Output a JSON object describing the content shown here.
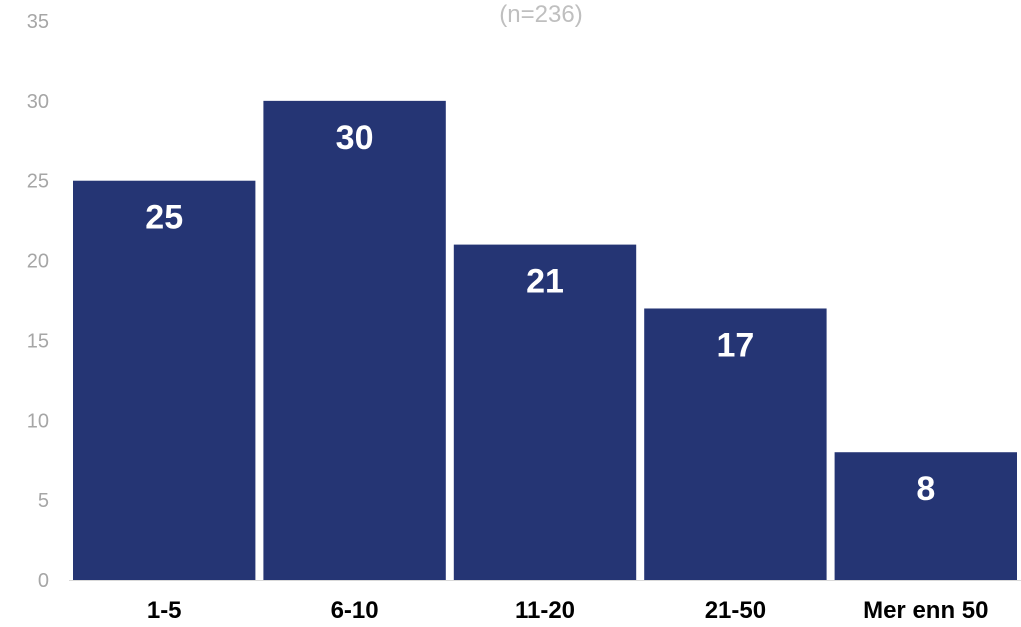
{
  "chart_data": {
    "type": "bar",
    "title": "",
    "subtitle": "(n=236)",
    "xlabel": "",
    "ylabel": "",
    "categories": [
      "1-5",
      "6-10",
      "11-20",
      "21-50",
      "Mer enn 50"
    ],
    "values": [
      25,
      30,
      21,
      17,
      8
    ],
    "data_labels": [
      "25",
      "30",
      "21",
      "17",
      "8"
    ],
    "ylim": [
      0,
      35
    ],
    "yticks": [
      0,
      5,
      10,
      15,
      20,
      25,
      30,
      35
    ],
    "ytick_labels": [
      "0",
      "5",
      "10",
      "15",
      "20",
      "25",
      "30",
      "35"
    ],
    "grid": false,
    "legend": "none",
    "bar_color": "#253574",
    "bar_label_color": "#ffffff",
    "axis_color": "#d9d9d9"
  }
}
